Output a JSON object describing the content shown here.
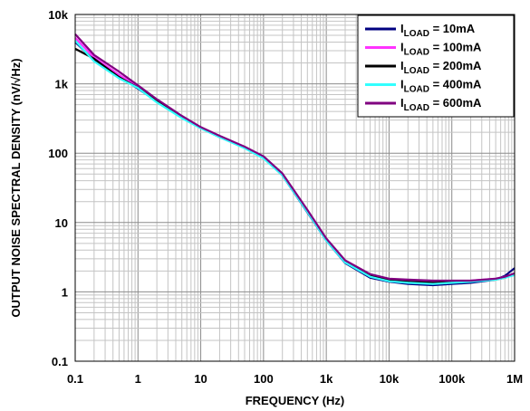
{
  "chart_data": {
    "type": "line",
    "title": "",
    "xlabel": "FREQUENCY (Hz)",
    "ylabel": "OUTPUT NOISE SPECTRAL DENSITY (nV/√Hz)",
    "xscale": "log",
    "yscale": "log",
    "xlim": [
      0.1,
      1000000
    ],
    "ylim": [
      0.1,
      10000
    ],
    "grid": true,
    "legend_position": "top-right",
    "x_tick_labels": [
      "0.1",
      "1",
      "10",
      "100",
      "1k",
      "10k",
      "100k",
      "1M"
    ],
    "y_tick_labels": [
      "0.1",
      "1",
      "10",
      "100",
      "1k",
      "10k"
    ],
    "x": [
      0.1,
      0.2,
      0.5,
      1,
      2,
      5,
      10,
      20,
      50,
      100,
      200,
      500,
      1000,
      2000,
      5000,
      10000,
      20000,
      50000,
      100000,
      200000,
      500000,
      700000,
      1000000
    ],
    "series": [
      {
        "name": "ILOAD = 10mA",
        "label_main": "I",
        "label_sub": "LOAD",
        "label_rest": " = 10mA",
        "color": "#000080",
        "values": [
          4000,
          2200,
          1300,
          850,
          560,
          330,
          230,
          170,
          120,
          85,
          48,
          14,
          5.5,
          2.6,
          1.6,
          1.4,
          1.3,
          1.25,
          1.3,
          1.35,
          1.5,
          1.7,
          2.2
        ]
      },
      {
        "name": "ILOAD = 100mA",
        "label_main": "I",
        "label_sub": "LOAD",
        "label_rest": " = 100mA",
        "color": "#ff33ff",
        "values": [
          4600,
          2400,
          1350,
          900,
          580,
          340,
          235,
          175,
          122,
          88,
          50,
          15,
          5.8,
          2.8,
          1.75,
          1.5,
          1.45,
          1.4,
          1.42,
          1.45,
          1.55,
          1.65,
          1.8
        ]
      },
      {
        "name": "ILOAD = 200mA",
        "label_main": "I",
        "label_sub": "LOAD",
        "label_rest": " = 200mA",
        "color": "#000000",
        "values": [
          3200,
          2300,
          1250,
          880,
          570,
          335,
          232,
          172,
          120,
          86,
          49,
          14.5,
          5.6,
          2.7,
          1.7,
          1.45,
          1.4,
          1.35,
          1.38,
          1.42,
          1.5,
          1.6,
          1.8
        ]
      },
      {
        "name": "ILOAD = 400mA",
        "label_main": "I",
        "label_sub": "LOAD",
        "label_rest": " = 400mA",
        "color": "#33ffff",
        "values": [
          4200,
          2100,
          1200,
          870,
          540,
          320,
          228,
          170,
          118,
          84,
          48,
          14.2,
          5.5,
          2.65,
          1.65,
          1.42,
          1.35,
          1.3,
          1.35,
          1.4,
          1.5,
          1.6,
          1.75
        ]
      },
      {
        "name": "ILOAD = 600mA",
        "label_main": "I",
        "label_sub": "LOAD",
        "label_rest": " = 600mA",
        "color": "#800080",
        "values": [
          5200,
          2600,
          1500,
          950,
          600,
          345,
          238,
          178,
          124,
          90,
          51,
          15.2,
          5.9,
          2.85,
          1.8,
          1.55,
          1.5,
          1.45,
          1.45,
          1.45,
          1.55,
          1.65,
          1.85
        ]
      }
    ]
  }
}
